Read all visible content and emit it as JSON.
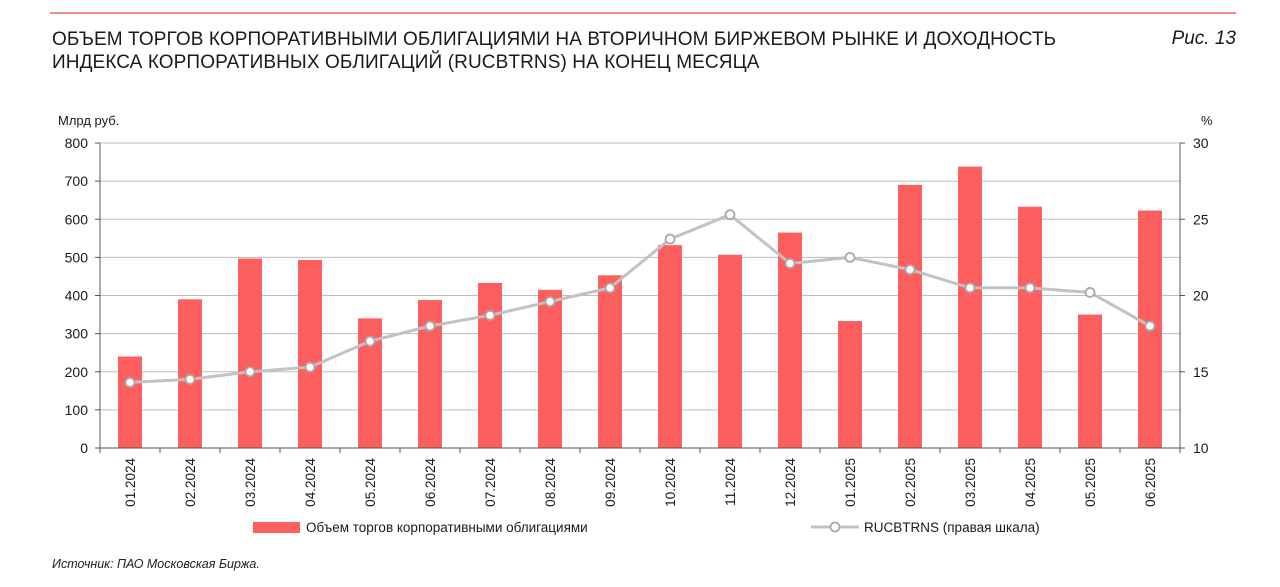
{
  "header": {
    "title_line1": "ОБЪЕМ ТОРГОВ КОРПОРАТИВНЫМИ ОБЛИГАЦИЯМИ НА ВТОРИЧНОМ БИРЖЕВОМ РЫНКЕ И ДОХОДНОСТЬ",
    "title_line2": "ИНДЕКСА КОРПОРАТИВНЫХ ОБЛИГАЦИЙ (RUCBTRNS) НА КОНЕЦ МЕСЯЦА",
    "figure_label": "Рис. 13"
  },
  "source": "Источник: ПАО Московская Биржа.",
  "colors": {
    "bar": "#fd5e5e",
    "line": "#c2c2c2",
    "rule": "#f08a8a"
  },
  "chart_data": {
    "type": "bar",
    "categories": [
      "01.2024",
      "02.2024",
      "03.2024",
      "04.2024",
      "05.2024",
      "06.2024",
      "07.2024",
      "08.2024",
      "09.2024",
      "10.2024",
      "11.2024",
      "12.2024",
      "01.2025",
      "02.2025",
      "03.2025",
      "04.2025",
      "05.2025",
      "06.2025"
    ],
    "left_axis": {
      "unit_label": "Млрд руб.",
      "ylim": [
        0,
        800
      ],
      "ticks": [
        0,
        100,
        200,
        300,
        400,
        500,
        600,
        700,
        800
      ]
    },
    "right_axis": {
      "unit_label": "%",
      "ylim": [
        10,
        30
      ],
      "ticks": [
        10,
        15,
        20,
        25,
        30
      ]
    },
    "series": [
      {
        "name": "Объем торгов корпоративными облигациями",
        "type": "bar",
        "axis": "left",
        "values": [
          240,
          390,
          497,
          493,
          340,
          388,
          433,
          415,
          453,
          532,
          507,
          565,
          333,
          690,
          738,
          633,
          350,
          623
        ]
      },
      {
        "name": "RUCBTRNS (правая шкала)",
        "type": "line",
        "axis": "right",
        "values": [
          14.3,
          14.5,
          15.0,
          15.3,
          17.0,
          18.0,
          18.7,
          19.6,
          20.5,
          23.7,
          25.3,
          22.1,
          22.5,
          21.7,
          20.5,
          20.5,
          20.2,
          18.0
        ]
      }
    ],
    "grid": "horizontal",
    "legend_position": "bottom"
  }
}
